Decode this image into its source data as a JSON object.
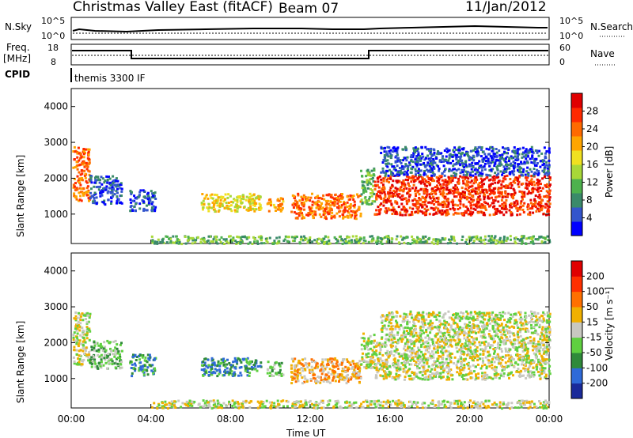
{
  "header": {
    "station": "Christmas Valley East (fitACF)",
    "beam": "Beam 07",
    "date": "11/Jan/2012"
  },
  "top_panels": {
    "nsky_label": "N.Sky",
    "nsky_ticks": [
      "10^5",
      "10^0"
    ],
    "nsearch_label": "N.Search",
    "nsearch_ticks": [
      "10^5",
      "10^0"
    ],
    "freq_label_1": "Freq.",
    "freq_label_2": "[MHz]",
    "freq_ticks": [
      "18",
      "8"
    ],
    "nave_label": "Nave",
    "nave_ticks": [
      "60",
      "0"
    ],
    "cpid_label": "CPID",
    "cpid_value": "themis 3300 IF"
  },
  "chart_data": [
    {
      "type": "heatmap",
      "name": "Power",
      "ylabel": "Slant Range [km]",
      "ylim": [
        180,
        4500
      ],
      "yticks": [
        "4000",
        "3000",
        "2000",
        "1000"
      ],
      "xlim_hours": [
        0,
        24
      ],
      "xticks": [
        "00:00",
        "04:00",
        "08:00",
        "12:00",
        "16:00",
        "20:00",
        "00:00"
      ],
      "colorbar_label": "Power [dB]",
      "colorbar_ticks": [
        "28",
        "24",
        "20",
        "16",
        "12",
        "8",
        "4"
      ],
      "colorbar_colors": [
        "#0000ff",
        "#3355cc",
        "#3a8a6a",
        "#4eb24e",
        "#a8d838",
        "#f0e020",
        "#ffa500",
        "#ff6a00",
        "#ff2a00",
        "#e00000"
      ],
      "scatter_regions": [
        {
          "t0": 0.05,
          "t1": 0.9,
          "r0": 1400,
          "r1": 2900,
          "level": 7
        },
        {
          "t0": 0.9,
          "t1": 2.5,
          "r0": 1300,
          "r1": 2100,
          "level": 1
        },
        {
          "t0": 2.9,
          "t1": 4.2,
          "r0": 1100,
          "r1": 1700,
          "level": 1
        },
        {
          "t0": 6.5,
          "t1": 9.5,
          "r0": 1100,
          "r1": 1600,
          "level": 5
        },
        {
          "t0": 9.8,
          "t1": 10.6,
          "r0": 1100,
          "r1": 1500,
          "level": 6
        },
        {
          "t0": 11.0,
          "t1": 14.5,
          "r0": 900,
          "r1": 1600,
          "level": 7
        },
        {
          "t0": 14.5,
          "t1": 15.2,
          "r0": 1300,
          "r1": 2300,
          "level": 3
        },
        {
          "t0": 15.2,
          "t1": 24.0,
          "r0": 1000,
          "r1": 2100,
          "level": 8
        },
        {
          "t0": 15.5,
          "t1": 24.0,
          "r0": 2100,
          "r1": 2900,
          "level": 1
        },
        {
          "t0": 4.0,
          "t1": 24.0,
          "r0": 200,
          "r1": 420,
          "level": 3
        }
      ]
    },
    {
      "type": "heatmap",
      "name": "Velocity",
      "ylabel": "Slant Range [km]",
      "ylim": [
        180,
        4500
      ],
      "yticks": [
        "4000",
        "3000",
        "2000",
        "1000"
      ],
      "xlim_hours": [
        0,
        24
      ],
      "xticks": [
        "00:00",
        "04:00",
        "08:00",
        "12:00",
        "16:00",
        "20:00",
        "00:00"
      ],
      "xlabel": "Time UT",
      "colorbar_label": "Velocity [m s⁻¹]",
      "colorbar_ticks": [
        "200",
        "100",
        "50",
        "15",
        "-15",
        "-50",
        "-100",
        "-200"
      ],
      "colorbar_colors": [
        "#1a2a9a",
        "#2f6ad8",
        "#2f8a3a",
        "#5fd040",
        "#c8c8c0",
        "#f0b000",
        "#ff7000",
        "#ff3000",
        "#e00000"
      ],
      "scatter_regions": [
        {
          "t0": 0.05,
          "t1": 0.9,
          "r0": 1400,
          "r1": 2900,
          "level": 4
        },
        {
          "t0": 0.9,
          "t1": 2.5,
          "r0": 1300,
          "r1": 2100,
          "level": 3
        },
        {
          "t0": 2.9,
          "t1": 4.2,
          "r0": 1100,
          "r1": 1700,
          "level": 2
        },
        {
          "t0": 6.5,
          "t1": 9.5,
          "r0": 1100,
          "r1": 1600,
          "level": 2
        },
        {
          "t0": 9.8,
          "t1": 10.6,
          "r0": 1100,
          "r1": 1500,
          "level": 3
        },
        {
          "t0": 11.0,
          "t1": 14.5,
          "r0": 900,
          "r1": 1600,
          "level": 5
        },
        {
          "t0": 14.5,
          "t1": 15.2,
          "r0": 1300,
          "r1": 2300,
          "level": 4
        },
        {
          "t0": 15.2,
          "t1": 24.0,
          "r0": 1000,
          "r1": 2100,
          "level": 4
        },
        {
          "t0": 15.5,
          "t1": 24.0,
          "r0": 2100,
          "r1": 2900,
          "level": 4
        },
        {
          "t0": 4.0,
          "t1": 24.0,
          "r0": 200,
          "r1": 420,
          "level": 4
        }
      ]
    }
  ]
}
